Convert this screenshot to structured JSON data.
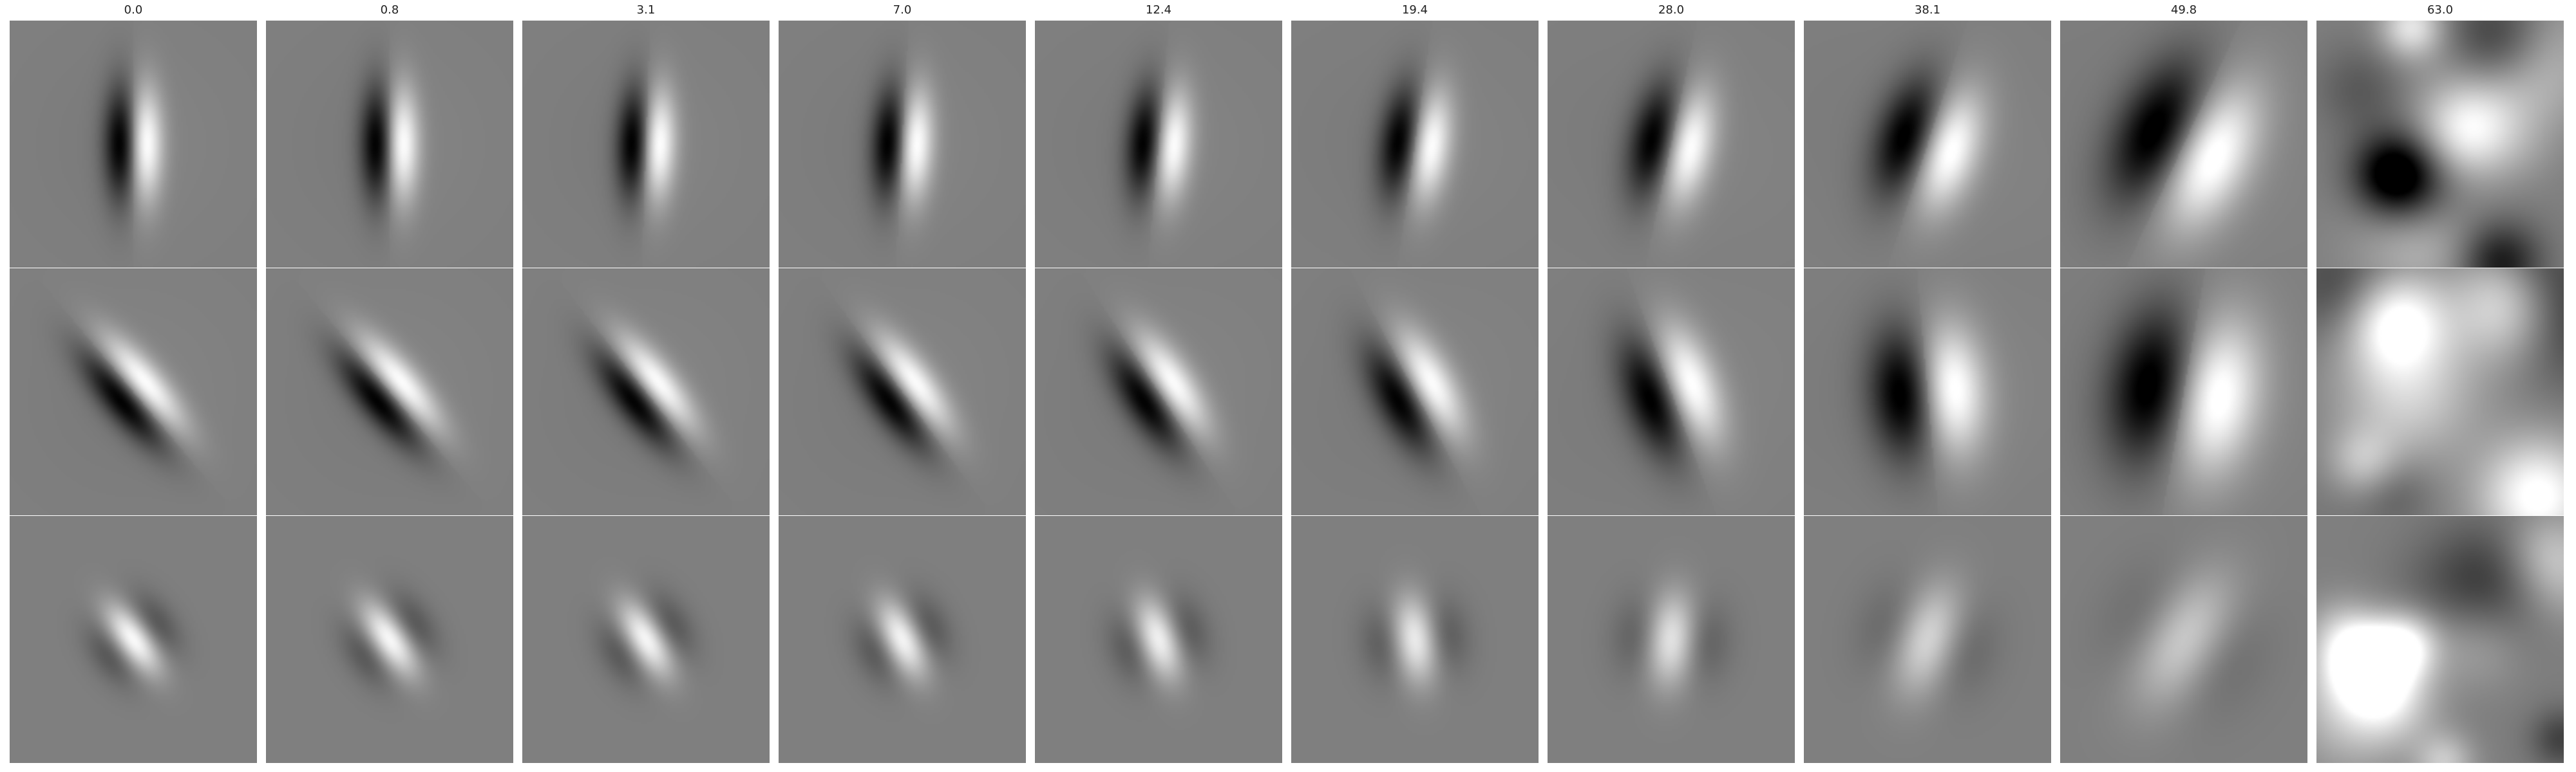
{
  "figure": {
    "background": "#ffffff",
    "neutral_gray": "#7f7f7f",
    "columns": [
      "0.0",
      "0.8",
      "3.1",
      "7.0",
      "12.4",
      "19.4",
      "28.0",
      "38.1",
      "49.8",
      "63.0"
    ],
    "rows": [
      {
        "pattern": "vertical-dipole",
        "description_polarity": "dark-left, bright-right",
        "tiles": [
          {
            "col": 0,
            "angle_deg": 0,
            "sigma": 0.05,
            "sep": 0.045,
            "aspect": 3.2,
            "amp": 1.0
          },
          {
            "col": 1,
            "angle_deg": 0,
            "sigma": 0.05,
            "sep": 0.045,
            "aspect": 3.2,
            "amp": 1.0
          },
          {
            "col": 2,
            "angle_deg": 2,
            "sigma": 0.05,
            "sep": 0.046,
            "aspect": 3.1,
            "amp": 1.0
          },
          {
            "col": 3,
            "angle_deg": 3,
            "sigma": 0.052,
            "sep": 0.048,
            "aspect": 3.0,
            "amp": 1.0
          },
          {
            "col": 4,
            "angle_deg": 5,
            "sigma": 0.055,
            "sep": 0.05,
            "aspect": 2.8,
            "amp": 1.0
          },
          {
            "col": 5,
            "angle_deg": 8,
            "sigma": 0.06,
            "sep": 0.055,
            "aspect": 2.6,
            "amp": 1.0
          },
          {
            "col": 6,
            "angle_deg": 12,
            "sigma": 0.07,
            "sep": 0.065,
            "aspect": 2.3,
            "amp": 1.0
          },
          {
            "col": 7,
            "angle_deg": 18,
            "sigma": 0.085,
            "sep": 0.085,
            "aspect": 2.0,
            "amp": 1.0
          },
          {
            "col": 8,
            "angle_deg": 25,
            "sigma": 0.11,
            "sep": 0.12,
            "aspect": 1.9,
            "amp": 1.0
          },
          {
            "col": 9,
            "noise": true,
            "seed": 11
          }
        ]
      },
      {
        "pattern": "diagonal-dipole",
        "description_polarity": "dark-upper-left, bright-lower-right",
        "tiles": [
          {
            "col": 0,
            "angle_deg": -40,
            "sigma": 0.055,
            "sep": 0.05,
            "aspect": 3.0,
            "amp": 1.0
          },
          {
            "col": 1,
            "angle_deg": -40,
            "sigma": 0.055,
            "sep": 0.05,
            "aspect": 3.0,
            "amp": 1.0
          },
          {
            "col": 2,
            "angle_deg": -38,
            "sigma": 0.056,
            "sep": 0.05,
            "aspect": 2.9,
            "amp": 1.0
          },
          {
            "col": 3,
            "angle_deg": -36,
            "sigma": 0.058,
            "sep": 0.052,
            "aspect": 2.8,
            "amp": 1.0
          },
          {
            "col": 4,
            "angle_deg": -33,
            "sigma": 0.062,
            "sep": 0.056,
            "aspect": 2.6,
            "amp": 1.0
          },
          {
            "col": 5,
            "angle_deg": -28,
            "sigma": 0.068,
            "sep": 0.062,
            "aspect": 2.4,
            "amp": 1.0
          },
          {
            "col": 6,
            "angle_deg": -20,
            "sigma": 0.078,
            "sep": 0.075,
            "aspect": 2.2,
            "amp": 1.0
          },
          {
            "col": 7,
            "angle_deg": -5,
            "sigma": 0.095,
            "sep": 0.095,
            "aspect": 1.9,
            "amp": 1.0
          },
          {
            "col": 8,
            "angle_deg": 10,
            "sigma": 0.12,
            "sep": 0.13,
            "aspect": 1.8,
            "amp": 1.0
          },
          {
            "col": 9,
            "noise": true,
            "seed": 23
          }
        ]
      },
      {
        "pattern": "bright-blob",
        "description_polarity": "bright-center, dark-flanks",
        "tiles": [
          {
            "col": 0,
            "angle_deg": -35,
            "sigma": 0.05,
            "aspect": 2.2,
            "amp": 1.0
          },
          {
            "col": 1,
            "angle_deg": -33,
            "sigma": 0.052,
            "aspect": 2.2,
            "amp": 1.0
          },
          {
            "col": 2,
            "angle_deg": -30,
            "sigma": 0.054,
            "aspect": 2.1,
            "amp": 1.0
          },
          {
            "col": 3,
            "angle_deg": -25,
            "sigma": 0.056,
            "aspect": 2.0,
            "amp": 1.0
          },
          {
            "col": 4,
            "angle_deg": -18,
            "sigma": 0.06,
            "aspect": 1.9,
            "amp": 1.0
          },
          {
            "col": 5,
            "angle_deg": -8,
            "sigma": 0.066,
            "aspect": 1.8,
            "amp": 1.0
          },
          {
            "col": 6,
            "angle_deg": 5,
            "sigma": 0.075,
            "aspect": 1.7,
            "amp": 1.0
          },
          {
            "col": 7,
            "angle_deg": 18,
            "sigma": 0.095,
            "aspect": 1.6,
            "amp": 1.0
          },
          {
            "col": 8,
            "angle_deg": 30,
            "sigma": 0.12,
            "aspect": 1.6,
            "amp": 1.0
          },
          {
            "col": 9,
            "noise": true,
            "seed": 37
          }
        ]
      }
    ]
  }
}
